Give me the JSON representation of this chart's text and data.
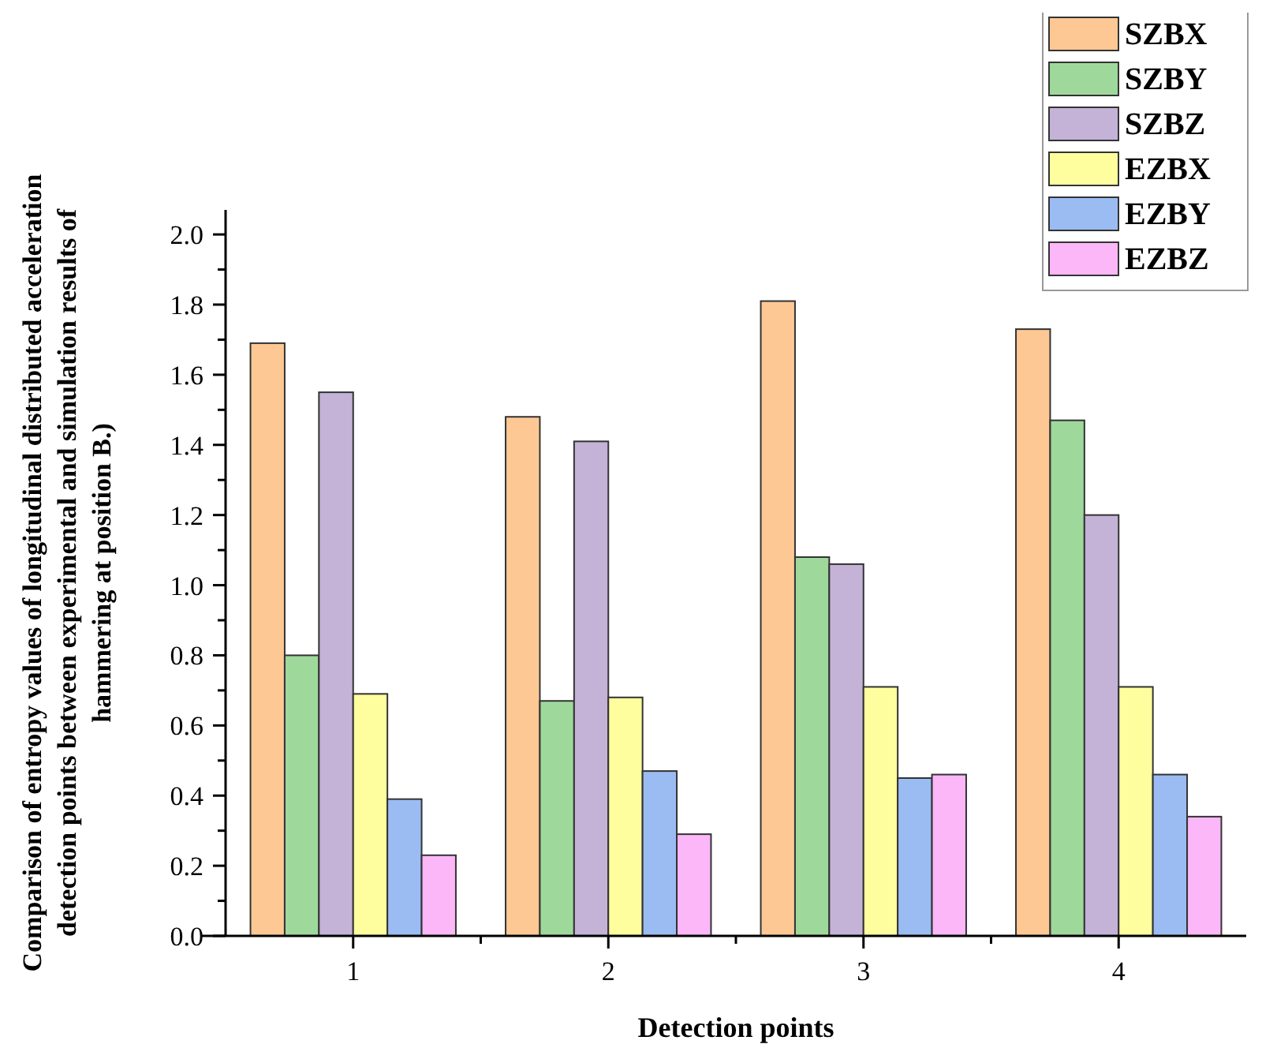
{
  "chart_data": {
    "type": "bar",
    "xlabel": "Detection points",
    "ylabel": "Comparison of entropy values of longitudinal distributed acceleration detection points between experimental and simulation results of hammering at position B.)",
    "categories": [
      "1",
      "2",
      "3",
      "4"
    ],
    "ylim": [
      0,
      2.07
    ],
    "yticks": [
      {
        "value": 0,
        "label": "0.0"
      },
      {
        "value": 0.2,
        "label": "0.2"
      },
      {
        "value": 0.4,
        "label": "0.4"
      },
      {
        "value": 0.6,
        "label": "0.6"
      },
      {
        "value": 0.8,
        "label": "0.8"
      },
      {
        "value": 1,
        "label": "1.0"
      },
      {
        "value": 1.2,
        "label": "1.2"
      },
      {
        "value": 1.4,
        "label": "1.4"
      },
      {
        "value": 1.6,
        "label": "1.6"
      },
      {
        "value": 1.8,
        "label": "1.8"
      },
      {
        "value": 2,
        "label": "2.0"
      }
    ],
    "legend": "top right",
    "series": [
      {
        "name": "SZBX",
        "color": "#fdc894",
        "values": [
          1.69,
          1.48,
          1.81,
          1.73
        ]
      },
      {
        "name": "SZBY",
        "color": "#9fd89b",
        "values": [
          0.8,
          0.67,
          1.08,
          1.47
        ]
      },
      {
        "name": "SZBZ",
        "color": "#c4b2d7",
        "values": [
          1.55,
          1.41,
          1.06,
          1.2
        ]
      },
      {
        "name": "EZBX",
        "color": "#fefe9e",
        "values": [
          0.69,
          0.68,
          0.71,
          0.71
        ]
      },
      {
        "name": "EZBY",
        "color": "#9bbcf2",
        "values": [
          0.39,
          0.47,
          0.45,
          0.46
        ]
      },
      {
        "name": "EZBZ",
        "color": "#fbb7f7",
        "values": [
          0.23,
          0.29,
          0.46,
          0.34
        ]
      }
    ]
  }
}
